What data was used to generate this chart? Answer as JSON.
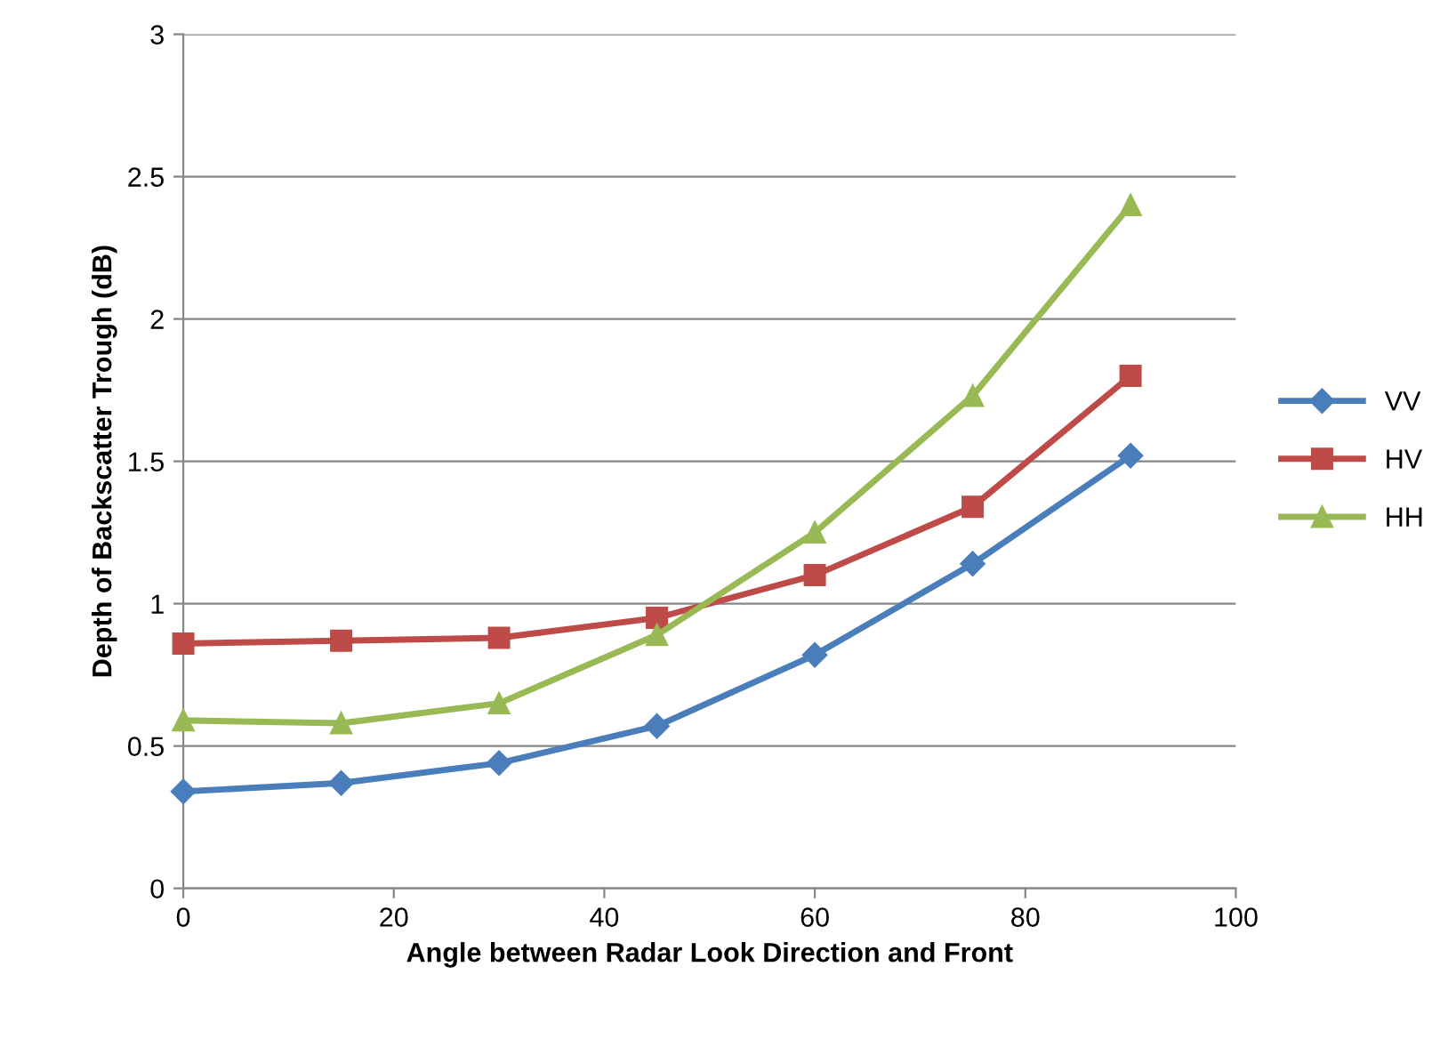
{
  "chart_data": {
    "type": "line",
    "xlabel": "Angle between Radar Look Direction and Front",
    "ylabel": "Depth of Backscatter Trough (dB)",
    "x": [
      0,
      15,
      30,
      45,
      60,
      75,
      90
    ],
    "series": [
      {
        "name": "VV",
        "color": "#4a7ebb",
        "marker": "diamond",
        "values": [
          0.34,
          0.37,
          0.44,
          0.57,
          0.82,
          1.14,
          1.52
        ]
      },
      {
        "name": "HV",
        "color": "#be4b48",
        "marker": "square",
        "values": [
          0.86,
          0.87,
          0.88,
          0.95,
          1.1,
          1.34,
          1.8
        ]
      },
      {
        "name": "HH",
        "color": "#98b954",
        "marker": "triangle",
        "values": [
          0.59,
          0.58,
          0.65,
          0.89,
          1.25,
          1.73,
          2.4
        ]
      }
    ],
    "xlim": [
      0,
      100
    ],
    "xticks": [
      0,
      20,
      40,
      60,
      80,
      100
    ],
    "ylim": [
      0,
      3
    ],
    "yticks": [
      0,
      0.5,
      1,
      1.5,
      2,
      2.5,
      3
    ],
    "grid": "y",
    "legend": "right",
    "line_style": "solid"
  }
}
